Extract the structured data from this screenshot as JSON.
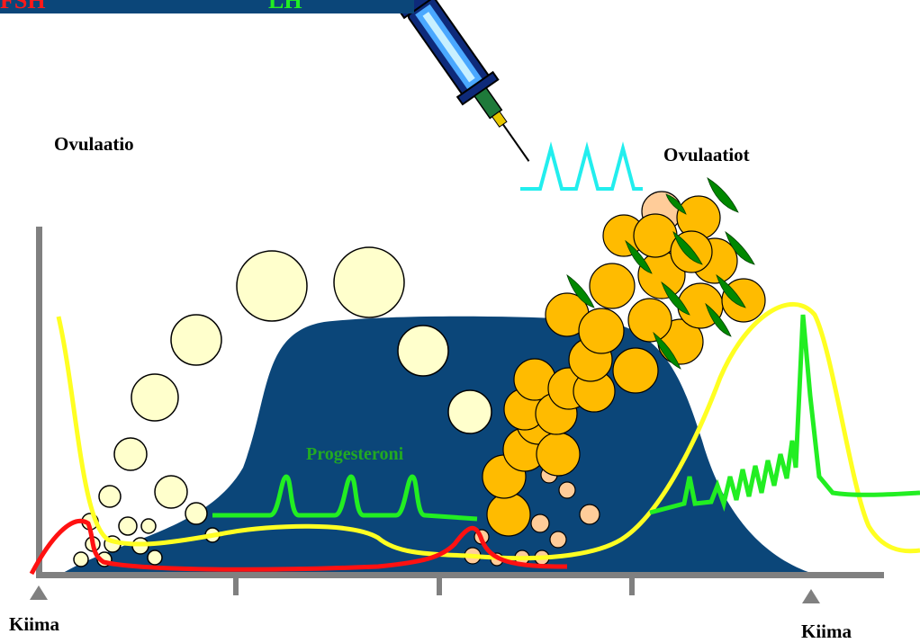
{
  "legend": {
    "fsh_label": "FSH",
    "lh_label": "LH",
    "background_color": "#0b4679",
    "fsh_color": "#ff1a1a",
    "lh_color": "#22ee22"
  },
  "labels": {
    "ovulation": "Ovulaatio",
    "ovulations": "Ovulaatiot",
    "heat_left": "Kiima",
    "heat_right": "Kiima",
    "progesterone": "Progesteroni"
  },
  "colors": {
    "progesterone_area": "#0b4679",
    "estrogen_curve": "#ffff22",
    "fsh_curve": "#ff1111",
    "lh_curve": "#22ee22",
    "injection_pulses": "#22eeee",
    "follicle_fill": "#ffffcc",
    "corpus_luteum_fill": "#ffbb00",
    "small_follicle_fill": "#ffcc99",
    "leaf_fill": "#008800",
    "axis": "#808080"
  },
  "icons": {
    "injection": "syringe-icon",
    "heat_marker": "triangle-up-icon"
  }
}
